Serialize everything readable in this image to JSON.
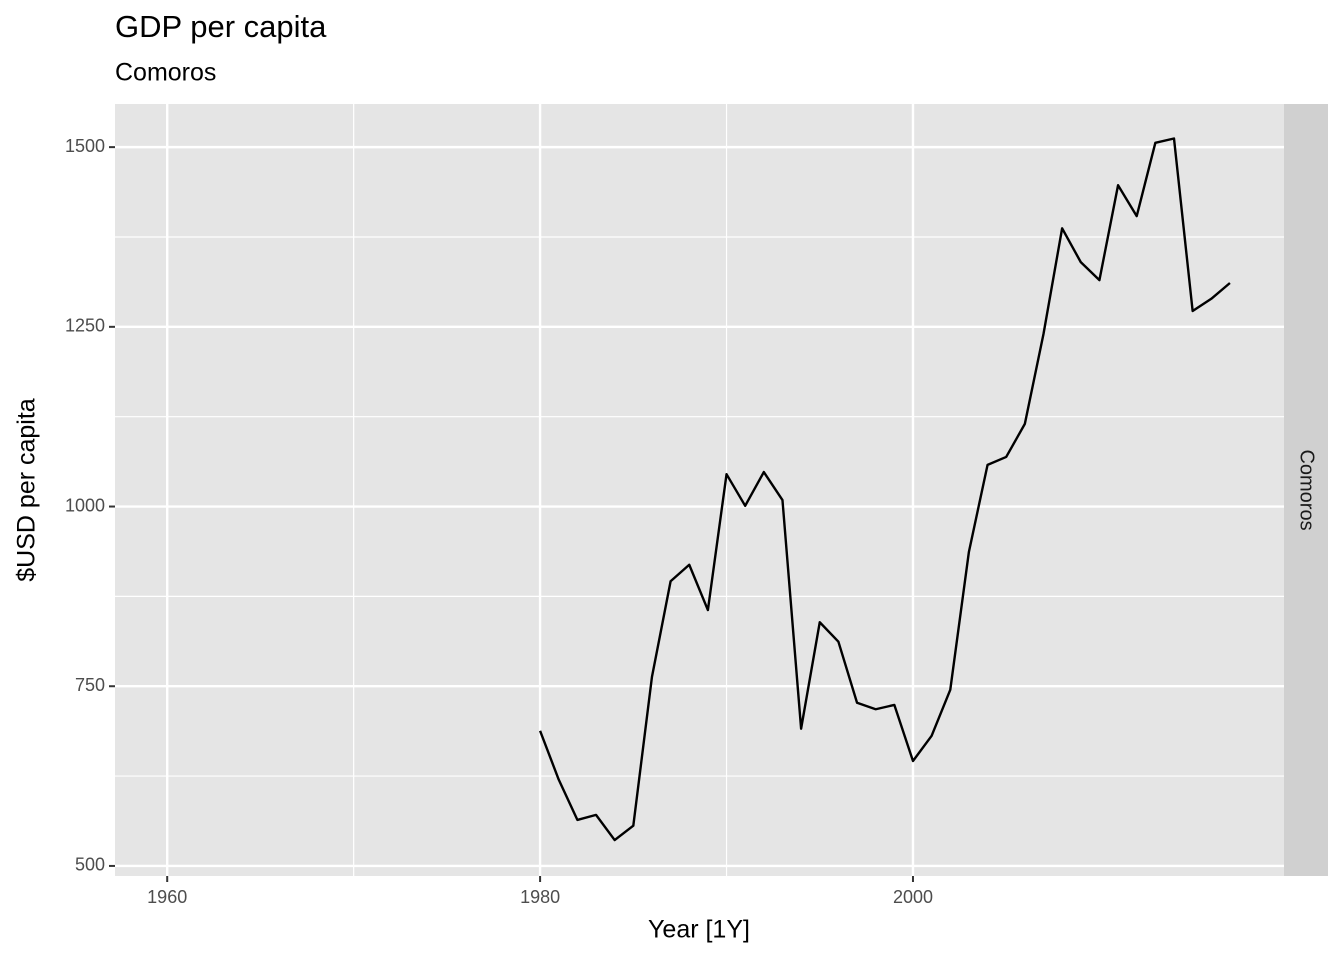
{
  "chart_data": {
    "type": "line",
    "title": "GDP per capita",
    "subtitle": "Comoros",
    "facet_label": "Comoros",
    "x_label": "Year [1Y]",
    "y_label": "$USD per capita",
    "x": [
      1980,
      1981,
      1982,
      1983,
      1984,
      1985,
      1986,
      1987,
      1988,
      1989,
      1990,
      1991,
      1992,
      1993,
      1994,
      1995,
      1996,
      1997,
      1998,
      1999,
      2000,
      2001,
      2002,
      2003,
      2004,
      2005,
      2006,
      2007,
      2008,
      2009,
      2010,
      2011,
      2012,
      2013,
      2014,
      2015,
      2016,
      2017
    ],
    "series": [
      {
        "color": "#000000",
        "values": [
          688,
          620,
          564,
          571,
          536,
          556,
          763,
          896,
          919,
          856,
          1045,
          1001,
          1048,
          1009,
          691,
          839,
          812,
          727,
          718,
          724,
          646,
          681,
          745,
          937,
          1058,
          1069,
          1115,
          1240,
          1387,
          1340,
          1315,
          1447,
          1404,
          1506,
          1512,
          1272,
          1289,
          1311
        ]
      }
    ],
    "xlim": [
      1957.2,
      2019.9
    ],
    "ylim": [
      486,
      1560
    ],
    "xticks": [
      1960,
      1980,
      2000
    ],
    "yticks": [
      500,
      750,
      1000,
      1250,
      1500
    ],
    "grid": true
  }
}
